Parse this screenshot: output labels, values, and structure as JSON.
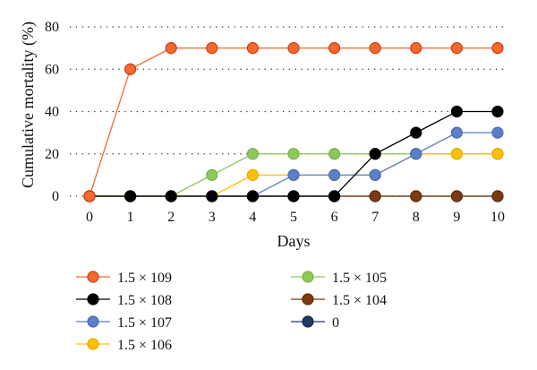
{
  "chart_data": {
    "type": "line",
    "xlabel": "Days",
    "ylabel": "Cumulative mortality (%)",
    "x": [
      0,
      1,
      2,
      3,
      4,
      5,
      6,
      7,
      8,
      9,
      10
    ],
    "xticks": [
      "0",
      "1",
      "2",
      "3",
      "4",
      "5",
      "6",
      "7",
      "8",
      "9",
      "10"
    ],
    "yticks": [
      "0",
      "20",
      "40",
      "60",
      "80"
    ],
    "ylim": [
      0,
      80
    ],
    "grid": "horizontal-dotted",
    "legend_placement": "bottom",
    "series": [
      {
        "name": "1.5 × 109",
        "color": "#f4692e",
        "edge": "#d03a10",
        "values": [
          0,
          60,
          70,
          70,
          70,
          70,
          70,
          70,
          70,
          70,
          70
        ]
      },
      {
        "name": "1.5 × 108",
        "color": "#000000",
        "edge": "#000000",
        "values": [
          0,
          0,
          0,
          0,
          0,
          0,
          0,
          20,
          30,
          40,
          40
        ]
      },
      {
        "name": "1.5 × 107",
        "color": "#5b7fc8",
        "edge": "#4a6cb0",
        "values": [
          0,
          0,
          0,
          0,
          0,
          10,
          10,
          10,
          20,
          30,
          30
        ]
      },
      {
        "name": "1.5 × 106",
        "color": "#ffc000",
        "edge": "#e0a800",
        "values": [
          0,
          0,
          0,
          0,
          10,
          10,
          10,
          10,
          20,
          20,
          20
        ]
      },
      {
        "name": "1.5 × 105",
        "color": "#8dc85a",
        "edge": "#7ab048",
        "values": [
          0,
          0,
          0,
          10,
          20,
          20,
          20,
          20,
          20,
          20,
          20
        ]
      },
      {
        "name": "1.5 × 104",
        "color": "#7b3b12",
        "edge": "#5e2a08",
        "values": [
          0,
          0,
          0,
          0,
          0,
          0,
          0,
          0,
          0,
          0,
          0
        ]
      },
      {
        "name": "0",
        "color": "#1f3a66",
        "edge": "#152a4c",
        "values": [
          0,
          0,
          0,
          0,
          0,
          0,
          0,
          0,
          0,
          0,
          0
        ]
      }
    ]
  }
}
